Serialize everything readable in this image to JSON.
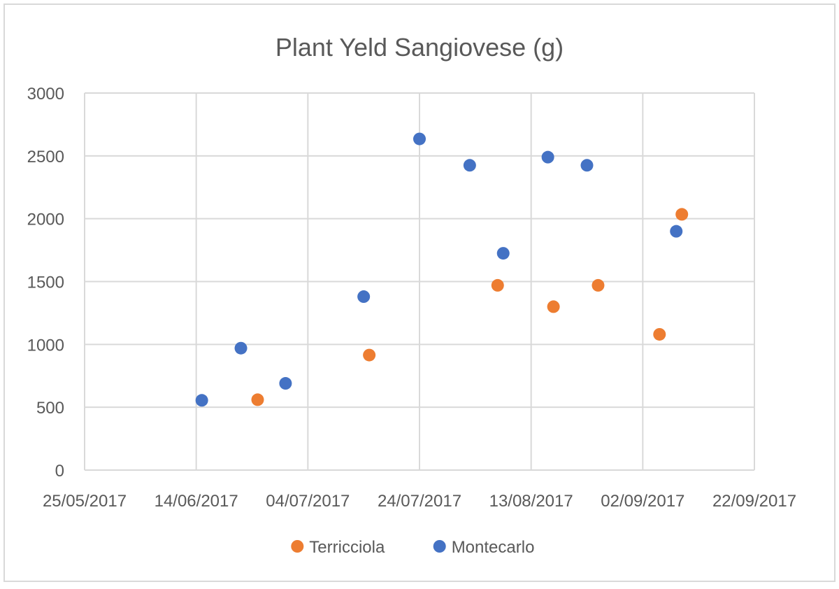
{
  "chart_data": {
    "type": "scatter",
    "title": "Plant Yeld Sangiovese (g)",
    "xlabel": "",
    "ylabel": "",
    "x_axis": {
      "type": "date",
      "min": "25/05/2017",
      "max": "22/09/2017",
      "ticks": [
        "25/05/2017",
        "14/06/2017",
        "04/07/2017",
        "24/07/2017",
        "13/08/2017",
        "02/09/2017",
        "22/09/2017"
      ]
    },
    "y_axis": {
      "min": 0,
      "max": 3000,
      "ticks": [
        "0",
        "500",
        "1000",
        "1500",
        "2000",
        "2500",
        "3000"
      ]
    },
    "grid": true,
    "legend_position": "bottom",
    "series": [
      {
        "name": "Terricciola",
        "color": "#ED7D31",
        "points": [
          {
            "x": "25/06/2017",
            "y": 560
          },
          {
            "x": "15/07/2017",
            "y": 915
          },
          {
            "x": "07/08/2017",
            "y": 1470
          },
          {
            "x": "17/08/2017",
            "y": 1300
          },
          {
            "x": "25/08/2017",
            "y": 1470
          },
          {
            "x": "05/09/2017",
            "y": 1080
          },
          {
            "x": "09/09/2017",
            "y": 2035
          }
        ]
      },
      {
        "name": "Montecarlo",
        "color": "#4472C4",
        "points": [
          {
            "x": "15/06/2017",
            "y": 555
          },
          {
            "x": "22/06/2017",
            "y": 970
          },
          {
            "x": "30/06/2017",
            "y": 690
          },
          {
            "x": "14/07/2017",
            "y": 1380
          },
          {
            "x": "24/07/2017",
            "y": 2635
          },
          {
            "x": "02/08/2017",
            "y": 2425
          },
          {
            "x": "08/08/2017",
            "y": 1725
          },
          {
            "x": "16/08/2017",
            "y": 2490
          },
          {
            "x": "23/08/2017",
            "y": 2425
          },
          {
            "x": "08/09/2017",
            "y": 1900
          }
        ]
      }
    ]
  }
}
